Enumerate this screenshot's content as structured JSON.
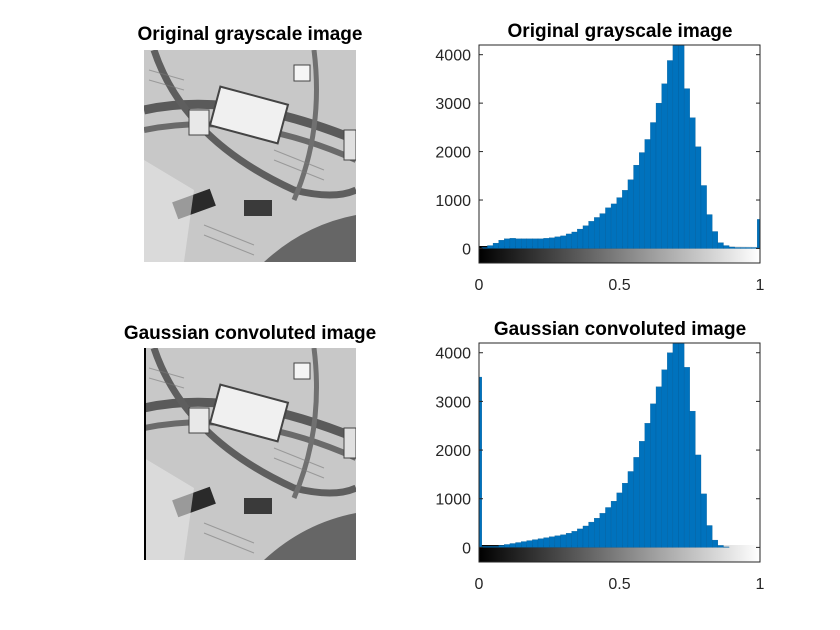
{
  "titles": {
    "img_top": "Original grayscale image",
    "hist_top": "Original grayscale image",
    "img_bottom": "Gaussian convoluted image",
    "hist_bottom": "Gaussian convoluted image"
  },
  "chart_data": [
    {
      "type": "bar",
      "title": "Original grayscale image",
      "xlabel": "",
      "ylabel": "",
      "xlim": [
        0,
        1
      ],
      "ylim": [
        -300,
        4200
      ],
      "yticks": [
        0,
        1000,
        2000,
        3000,
        4000
      ],
      "xticks": [
        "0",
        "0.5",
        "1"
      ],
      "colorbar": "grayscale 0 to 1",
      "bar_color": "#0072BD",
      "x": [
        0.0,
        0.02,
        0.04,
        0.06,
        0.08,
        0.1,
        0.12,
        0.14,
        0.16,
        0.18,
        0.2,
        0.22,
        0.24,
        0.26,
        0.28,
        0.3,
        0.32,
        0.34,
        0.36,
        0.38,
        0.4,
        0.42,
        0.44,
        0.46,
        0.48,
        0.5,
        0.52,
        0.54,
        0.56,
        0.58,
        0.6,
        0.62,
        0.64,
        0.66,
        0.68,
        0.7,
        0.72,
        0.74,
        0.76,
        0.78,
        0.8,
        0.82,
        0.84,
        0.86,
        0.88,
        0.9,
        0.92,
        0.94,
        0.96,
        0.98,
        1.0
      ],
      "values": [
        0,
        20,
        60,
        110,
        170,
        200,
        210,
        200,
        200,
        200,
        200,
        200,
        210,
        220,
        240,
        260,
        300,
        340,
        400,
        470,
        560,
        640,
        720,
        840,
        920,
        1050,
        1200,
        1420,
        1720,
        1980,
        2250,
        2600,
        3000,
        3400,
        3880,
        4250,
        4300,
        3300,
        2700,
        2100,
        1300,
        700,
        350,
        120,
        60,
        30,
        20,
        20,
        20,
        20,
        600
      ]
    },
    {
      "type": "bar",
      "title": "Gaussian convoluted image",
      "xlabel": "",
      "ylabel": "",
      "xlim": [
        0,
        1
      ],
      "ylim": [
        -300,
        4200
      ],
      "yticks": [
        0,
        1000,
        2000,
        3000,
        4000
      ],
      "xticks": [
        "0",
        "0.5",
        "1"
      ],
      "colorbar": "grayscale 0 to 1",
      "bar_color": "#0072BD",
      "x": [
        0.0,
        0.02,
        0.04,
        0.06,
        0.08,
        0.1,
        0.12,
        0.14,
        0.16,
        0.18,
        0.2,
        0.22,
        0.24,
        0.26,
        0.28,
        0.3,
        0.32,
        0.34,
        0.36,
        0.38,
        0.4,
        0.42,
        0.44,
        0.46,
        0.48,
        0.5,
        0.52,
        0.54,
        0.56,
        0.58,
        0.6,
        0.62,
        0.64,
        0.66,
        0.68,
        0.7,
        0.72,
        0.74,
        0.76,
        0.78,
        0.8,
        0.82,
        0.84,
        0.86,
        0.88,
        0.9,
        0.92,
        0.94,
        0.96,
        0.98,
        1.0
      ],
      "values": [
        3500,
        20,
        20,
        20,
        40,
        60,
        80,
        100,
        120,
        140,
        160,
        180,
        200,
        220,
        240,
        260,
        290,
        330,
        380,
        440,
        520,
        600,
        700,
        820,
        950,
        1120,
        1320,
        1560,
        1850,
        2180,
        2550,
        2950,
        3300,
        3650,
        4000,
        4300,
        4300,
        3700,
        2800,
        1900,
        1100,
        450,
        150,
        40,
        10,
        0,
        0,
        0,
        0,
        0,
        0
      ]
    }
  ]
}
